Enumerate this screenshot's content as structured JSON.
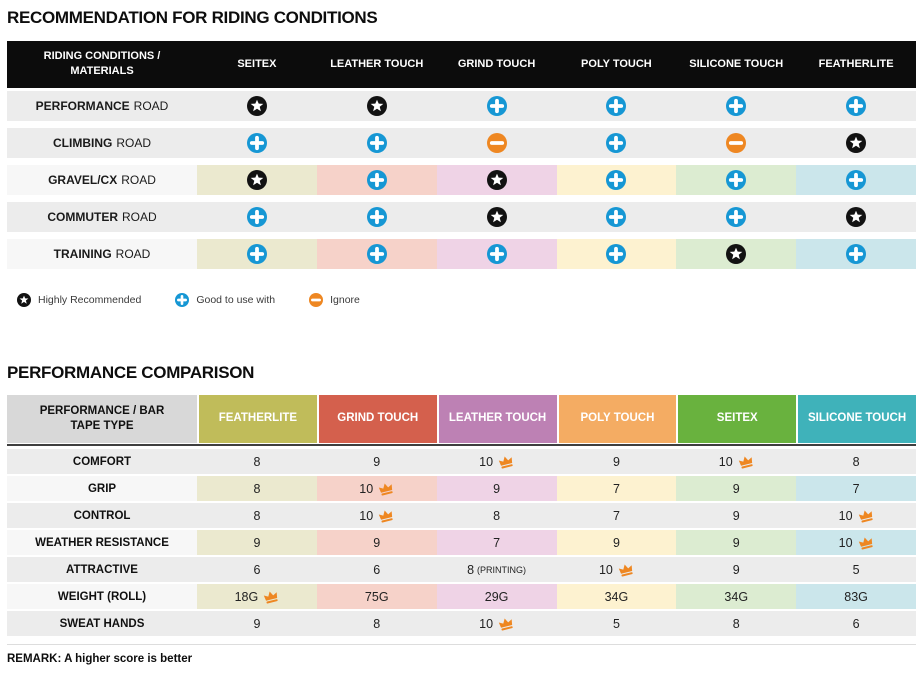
{
  "colors": {
    "blue": "#1697d4",
    "orange": "#ee8722",
    "black_circle": "#121212",
    "header_black": "#0c0c0c",
    "row_gray": "#ececec",
    "tinted_label": "#f7f7f7",
    "header_gray": "#d8d8d8",
    "divider_dark": "#3f3f3f",
    "tints": [
      "#ebe9cf",
      "#f6d2c9",
      "#efd3e6",
      "#fdf2d0",
      "#dcecd1",
      "#cbe6eb"
    ]
  },
  "section1": {
    "title": "RECOMMENDATION FOR RIDING CONDITIONS",
    "table": {
      "header": [
        "RIDING CONDITIONS / MATERIALS",
        "SEITEX",
        "LEATHER TOUCH",
        "GRIND TOUCH",
        "POLY TOUCH",
        "SILICONE TOUCH",
        "FEATHERLITE"
      ],
      "rows": [
        {
          "label_bold": "PERFORMANCE",
          "label_rest": "ROAD",
          "tinted": false,
          "cells": [
            "star",
            "star",
            "plus",
            "plus",
            "plus",
            "plus"
          ]
        },
        {
          "label_bold": "CLIMBING",
          "label_rest": "ROAD",
          "tinted": false,
          "cells": [
            "plus",
            "plus",
            "minus",
            "plus",
            "minus",
            "star"
          ]
        },
        {
          "label_bold": "GRAVEL/CX",
          "label_rest": "ROAD",
          "tinted": true,
          "cells": [
            "star",
            "plus",
            "star",
            "plus",
            "plus",
            "plus"
          ]
        },
        {
          "label_bold": "COMMUTER",
          "label_rest": "ROAD",
          "tinted": false,
          "cells": [
            "plus",
            "plus",
            "star",
            "plus",
            "plus",
            "star"
          ]
        },
        {
          "label_bold": "TRAINING",
          "label_rest": "ROAD",
          "tinted": true,
          "cells": [
            "plus",
            "plus",
            "plus",
            "plus",
            "star",
            "plus"
          ]
        }
      ]
    },
    "legend": [
      {
        "icon": "star",
        "label": "Highly Recommended"
      },
      {
        "icon": "plus",
        "label": "Good to use with"
      },
      {
        "icon": "minus",
        "label": "Ignore"
      }
    ]
  },
  "section2": {
    "title": "PERFORMANCE COMPARISON",
    "table": {
      "header_label": "PERFORMANCE / BAR TAPE TYPE",
      "columns": [
        {
          "label": "FEATHERLITE",
          "color": "#c0bc5a"
        },
        {
          "label": "GRIND TOUCH",
          "color": "#d4604d"
        },
        {
          "label": "LEATHER TOUCH",
          "color": "#bd81b4"
        },
        {
          "label": "POLY TOUCH",
          "color": "#f4ac63"
        },
        {
          "label": "SEITEX",
          "color": "#69b23e"
        },
        {
          "label": "SILICONE TOUCH",
          "color": "#3fb2ba"
        }
      ],
      "rows": [
        {
          "label": "COMFORT",
          "tinted": false,
          "cells": [
            {
              "text": "8"
            },
            {
              "text": "9"
            },
            {
              "text": "10",
              "crown": true
            },
            {
              "text": "9"
            },
            {
              "text": "10",
              "crown": true
            },
            {
              "text": "8"
            }
          ]
        },
        {
          "label": "GRIP",
          "tinted": true,
          "cells": [
            {
              "text": "8"
            },
            {
              "text": "10",
              "crown": true
            },
            {
              "text": "9"
            },
            {
              "text": "7"
            },
            {
              "text": "9"
            },
            {
              "text": "7"
            }
          ]
        },
        {
          "label": "CONTROL",
          "tinted": false,
          "cells": [
            {
              "text": "8"
            },
            {
              "text": "10",
              "crown": true
            },
            {
              "text": "8"
            },
            {
              "text": "7"
            },
            {
              "text": "9"
            },
            {
              "text": "10",
              "crown": true
            }
          ]
        },
        {
          "label": "WEATHER RESISTANCE",
          "tinted": true,
          "cells": [
            {
              "text": "9"
            },
            {
              "text": "9"
            },
            {
              "text": "7"
            },
            {
              "text": "9"
            },
            {
              "text": "9"
            },
            {
              "text": "10",
              "crown": true
            }
          ]
        },
        {
          "label": "ATTRACTIVE",
          "tinted": false,
          "cells": [
            {
              "text": "6"
            },
            {
              "text": "6"
            },
            {
              "text": "8",
              "suffix": "(PRINTING)"
            },
            {
              "text": "10",
              "crown": true
            },
            {
              "text": "9"
            },
            {
              "text": "5"
            }
          ]
        },
        {
          "label": "WEIGHT (ROLL)",
          "tinted": true,
          "cells": [
            {
              "text": "18G",
              "crown": true
            },
            {
              "text": "75G"
            },
            {
              "text": "29G"
            },
            {
              "text": "34G"
            },
            {
              "text": "34G"
            },
            {
              "text": "83G"
            }
          ]
        },
        {
          "label": "SWEAT HANDS",
          "tinted": false,
          "cells": [
            {
              "text": "9"
            },
            {
              "text": "8"
            },
            {
              "text": "10",
              "crown": true
            },
            {
              "text": "5"
            },
            {
              "text": "8"
            },
            {
              "text": "6"
            }
          ]
        }
      ]
    },
    "remark": "REMARK: A higher score is better"
  },
  "chart_data": [
    {
      "type": "table",
      "title": "RECOMMENDATION FOR RIDING CONDITIONS",
      "columns": [
        "RIDING CONDITIONS / MATERIALS",
        "SEITEX",
        "LEATHER TOUCH",
        "GRIND TOUCH",
        "POLY TOUCH",
        "SILICONE TOUCH",
        "FEATHERLITE"
      ],
      "rows": [
        [
          "PERFORMANCE ROAD",
          "highly-recommended",
          "highly-recommended",
          "good-to-use-with",
          "good-to-use-with",
          "good-to-use-with",
          "good-to-use-with"
        ],
        [
          "CLIMBING ROAD",
          "good-to-use-with",
          "good-to-use-with",
          "ignore",
          "good-to-use-with",
          "ignore",
          "highly-recommended"
        ],
        [
          "GRAVEL/CX ROAD",
          "highly-recommended",
          "good-to-use-with",
          "highly-recommended",
          "good-to-use-with",
          "good-to-use-with",
          "good-to-use-with"
        ],
        [
          "COMMUTER ROAD",
          "good-to-use-with",
          "good-to-use-with",
          "highly-recommended",
          "good-to-use-with",
          "good-to-use-with",
          "highly-recommended"
        ],
        [
          "TRAINING ROAD",
          "good-to-use-with",
          "good-to-use-with",
          "good-to-use-with",
          "good-to-use-with",
          "highly-recommended",
          "good-to-use-with"
        ]
      ],
      "legend": {
        "star": "Highly Recommended",
        "plus": "Good to use with",
        "minus": "Ignore"
      }
    },
    {
      "type": "table",
      "title": "PERFORMANCE COMPARISON",
      "columns": [
        "PERFORMANCE / BAR TAPE TYPE",
        "FEATHERLITE",
        "GRIND TOUCH",
        "LEATHER TOUCH",
        "POLY TOUCH",
        "SEITEX",
        "SILICONE TOUCH"
      ],
      "rows": [
        [
          "COMFORT",
          "8",
          "9",
          "10 (best)",
          "9",
          "10 (best)",
          "8"
        ],
        [
          "GRIP",
          "8",
          "10 (best)",
          "9",
          "7",
          "9",
          "7"
        ],
        [
          "CONTROL",
          "8",
          "10 (best)",
          "8",
          "7",
          "9",
          "10 (best)"
        ],
        [
          "WEATHER RESISTANCE",
          "9",
          "9",
          "7",
          "9",
          "9",
          "10 (best)"
        ],
        [
          "ATTRACTIVE",
          "6",
          "6",
          "8 (PRINTING)",
          "10 (best)",
          "9",
          "5"
        ],
        [
          "WEIGHT (ROLL)",
          "18G (best)",
          "75G",
          "29G",
          "34G",
          "34G",
          "83G"
        ],
        [
          "SWEAT HANDS",
          "9",
          "8",
          "10 (best)",
          "5",
          "8",
          "6"
        ]
      ],
      "note": "REMARK: A higher score is better"
    }
  ]
}
